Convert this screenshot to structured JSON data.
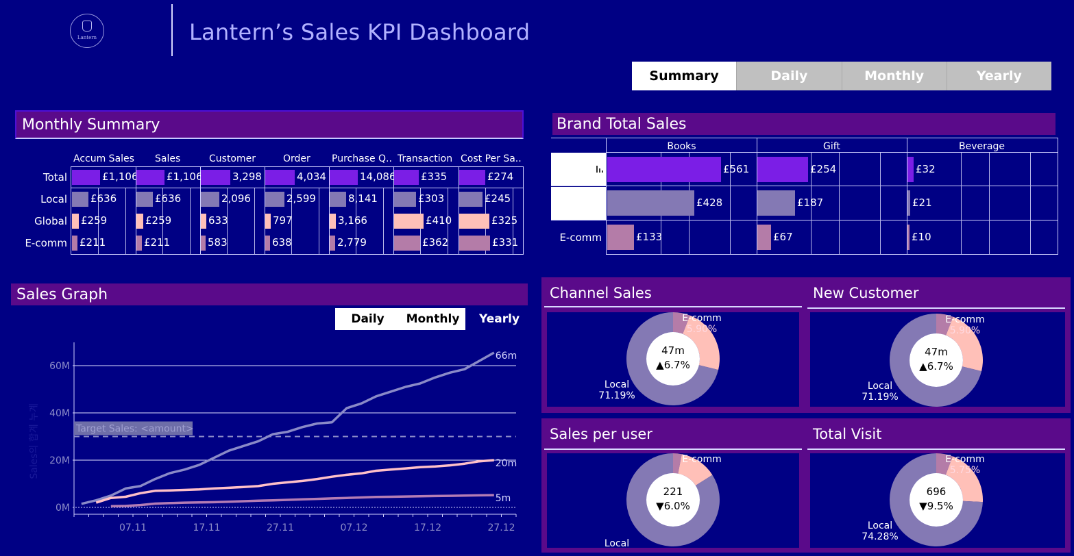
{
  "header": {
    "logo_text": "Lantern",
    "title": "Lantern’s Sales KPI Dashboard"
  },
  "nav_tabs": [
    "Summary",
    "Daily",
    "Monthly",
    "Yearly"
  ],
  "monthly_summary": {
    "title": "Monthly Summary",
    "columns": [
      "Accum Sales",
      "Sales",
      "Customer",
      "Order",
      "Purchase Q..",
      "Transaction",
      "Cost Per Sa.."
    ],
    "rows": [
      {
        "label": "Total",
        "values": [
          "£1,106",
          "£1,106",
          "3,298",
          "4,034",
          "14,086",
          "£335",
          "£274"
        ],
        "fractions": [
          0.44,
          0.44,
          0.46,
          0.46,
          0.44,
          0.38,
          0.4
        ]
      },
      {
        "label": "Local",
        "values": [
          "£636",
          "£636",
          "2,096",
          "2,599",
          "8,141",
          "£303",
          "£245"
        ],
        "fractions": [
          0.26,
          0.26,
          0.29,
          0.3,
          0.26,
          0.34,
          0.36
        ]
      },
      {
        "label": "Global",
        "values": [
          "£259",
          "£259",
          "633",
          "797",
          "3,166",
          "£410",
          "£325"
        ],
        "fractions": [
          0.11,
          0.11,
          0.08,
          0.09,
          0.1,
          0.46,
          0.47
        ]
      },
      {
        "label": "E-comm",
        "values": [
          "£211",
          "£211",
          "583",
          "638",
          "2,779",
          "£362",
          "£331"
        ],
        "fractions": [
          0.09,
          0.09,
          0.07,
          0.07,
          0.09,
          0.4,
          0.48
        ]
      }
    ]
  },
  "brand_total_sales": {
    "title": "Brand Total Sales",
    "brands": [
      "Books",
      "Gift",
      "Beverage"
    ],
    "rows": [
      {
        "label": "",
        "values": [
          "£561",
          "£254",
          "£32"
        ],
        "icon": "bar-chart-icon"
      },
      {
        "label": "",
        "values": [
          "£428",
          "£187",
          "£21"
        ]
      },
      {
        "label": "E-comm",
        "values": [
          "£133",
          "£67",
          "£10"
        ]
      }
    ]
  },
  "sales_graph": {
    "title": "Sales Graph",
    "tabs": [
      "Daily",
      "Monthly"
    ],
    "active_tab": "Yearly",
    "target_label": "Target Sales: <amount>",
    "axis_label": "Sales의 합계 누계"
  },
  "chart_data": {
    "type": "line",
    "title": "Sales Graph",
    "xlabel": "",
    "ylabel": "Sales의 합계 누계",
    "ylim": [
      0,
      72
    ],
    "y_ticks": [
      "0M",
      "20M",
      "40M",
      "60M"
    ],
    "x_ticks": [
      "07.11",
      "17.11",
      "27.11",
      "07.12",
      "17.12",
      "27.12"
    ],
    "x": [
      1,
      3,
      5,
      7,
      9,
      11,
      13,
      15,
      17,
      19,
      21,
      23,
      25,
      27,
      29,
      31,
      33,
      35,
      37,
      39,
      41,
      43,
      45,
      47,
      49,
      51,
      53,
      55,
      57
    ],
    "target": 30,
    "series": [
      {
        "name": "Total",
        "end_label": "66m",
        "color": "#8a8ac8",
        "values": [
          1.5,
          3,
          5,
          8,
          9,
          12,
          14.5,
          16,
          18,
          21,
          24,
          26,
          28,
          31,
          32,
          34,
          35.5,
          36,
          42,
          44,
          47,
          49,
          51,
          52.5,
          55,
          57,
          58.5,
          62,
          65.5
        ]
      },
      {
        "name": "Local",
        "end_label": "20m",
        "color": "#ffc0c8",
        "values": [
          null,
          2,
          4,
          4.5,
          6,
          7,
          7.2,
          7.4,
          7.6,
          8,
          8.3,
          8.6,
          9,
          10,
          10.6,
          11.2,
          12,
          13,
          13.8,
          14.4,
          15.5,
          16,
          16.5,
          17,
          17.3,
          17.8,
          18.5,
          19.5,
          20
        ]
      },
      {
        "name": "E-comm",
        "end_label": "5m",
        "color": "#b47cb4",
        "values": [
          null,
          null,
          0.5,
          0.6,
          1,
          1.6,
          1.8,
          2,
          2.1,
          2.2,
          2.4,
          2.6,
          2.8,
          3,
          3.2,
          3.4,
          3.6,
          3.8,
          4,
          4.2,
          4.4,
          4.5,
          4.6,
          4.7,
          4.8,
          4.9,
          5,
          5.1,
          5.2
        ]
      }
    ]
  },
  "donuts": [
    {
      "title": "Channel Sales",
      "center_value": "47m",
      "center_change": "▲6.7%",
      "ecomm_label": "E-comm",
      "ecomm_pct": "5.90%",
      "local_label": "Local",
      "local_pct": "71.19%",
      "shares": [
        0.059,
        0.2291,
        0.7119
      ]
    },
    {
      "title": "New Customer",
      "center_value": "47m",
      "center_change": "▲6.7%",
      "ecomm_label": "E-comm",
      "ecomm_pct": "5.90%",
      "local_label": "Local",
      "local_pct": "71.19%",
      "shares": [
        0.059,
        0.2291,
        0.7119
      ]
    },
    {
      "title": "Sales per user",
      "center_value": "221",
      "center_change": "▼6.0%",
      "ecomm_label": "E-comm",
      "ecomm_pct": "",
      "local_label": "Local",
      "local_pct": "",
      "shares": [
        0.03,
        0.13,
        0.84
      ]
    },
    {
      "title": "Total Visit",
      "center_value": "696",
      "center_change": "▼9.5%",
      "ecomm_label": "E-comm",
      "ecomm_pct": "5.75%",
      "local_label": "Local",
      "local_pct": "74.28%",
      "shares": [
        0.0575,
        0.1997,
        0.7428
      ]
    }
  ],
  "colors": {
    "background": "#000084",
    "accent_purple": "#7b1ee6",
    "local": "#8479b4",
    "global": "#ffc0b8",
    "ecomm": "#b47ca8",
    "header": "#5a0a8a"
  }
}
